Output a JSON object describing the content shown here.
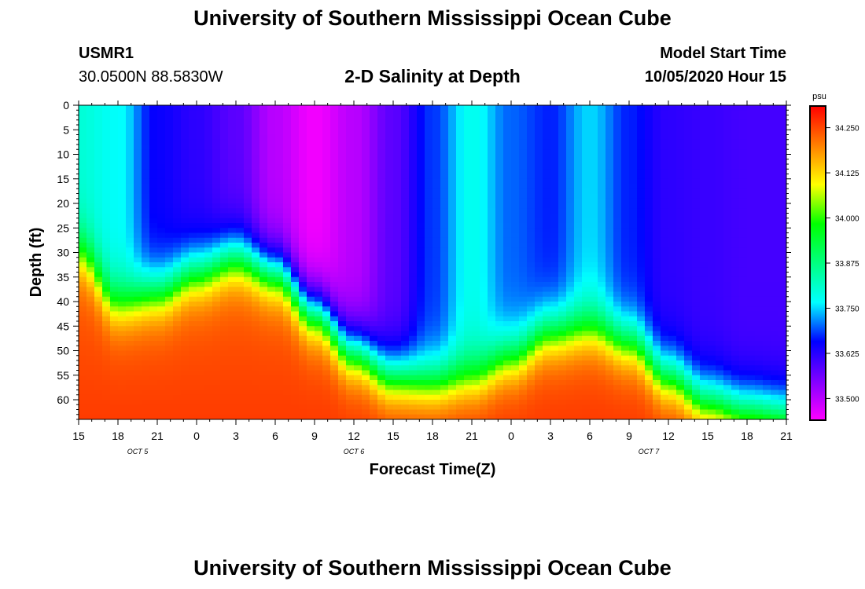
{
  "header": {
    "title": "University of Southern Mississippi Ocean Cube",
    "station_id": "USMR1",
    "coords": "30.0500N 88.5830W",
    "subtitle": "2-D Salinity at Depth",
    "model_start_label": "Model Start Time",
    "model_start_value": "10/05/2020 Hour 15",
    "footer_title": "University of Southern Mississippi Ocean Cube"
  },
  "colors": {
    "stops": [
      "#ff00ff",
      "#8000ff",
      "#0000ff",
      "#00ffff",
      "#00ff80",
      "#00ff00",
      "#ffff00",
      "#ff8000",
      "#ff0000"
    ]
  },
  "chart_data": {
    "type": "heatmap",
    "title": "2-D Salinity at Depth",
    "xlabel": "Forecast Time(Z)",
    "ylabel": "Depth (ft)",
    "x_ticks": [
      "15",
      "18",
      "21",
      "0",
      "3",
      "6",
      "9",
      "12",
      "15",
      "18",
      "21",
      "0",
      "3",
      "6",
      "9",
      "12",
      "15",
      "18",
      "21"
    ],
    "x_range_hours": [
      0,
      54
    ],
    "date_labels": [
      {
        "text": "OCT 5",
        "hour": 4.5
      },
      {
        "text": "OCT 6",
        "hour": 21
      },
      {
        "text": "OCT 7",
        "hour": 43.5
      }
    ],
    "y_ticks": [
      0,
      5,
      10,
      15,
      20,
      25,
      30,
      35,
      40,
      45,
      50,
      55,
      60
    ],
    "ylim": [
      0,
      64
    ],
    "colorbar": {
      "unit": "psu",
      "ticks": [
        "34.250",
        "34.125",
        "34.000",
        "33.875",
        "33.750",
        "33.625",
        "33.500"
      ],
      "tick_values": [
        34.25,
        34.125,
        34.0,
        33.875,
        33.75,
        33.625,
        33.5
      ],
      "range": [
        33.44,
        34.31
      ]
    },
    "surface_salinity": [
      {
        "hour": 0,
        "value": 33.8
      },
      {
        "hour": 3,
        "value": 33.77
      },
      {
        "hour": 6,
        "value": 33.65
      },
      {
        "hour": 9,
        "value": 33.62
      },
      {
        "hour": 12,
        "value": 33.58
      },
      {
        "hour": 15,
        "value": 33.5
      },
      {
        "hour": 18,
        "value": 33.45
      },
      {
        "hour": 21,
        "value": 33.5
      },
      {
        "hour": 24,
        "value": 33.58
      },
      {
        "hour": 27,
        "value": 33.68
      },
      {
        "hour": 30,
        "value": 33.78
      },
      {
        "hour": 33,
        "value": 33.7
      },
      {
        "hour": 36,
        "value": 33.67
      },
      {
        "hour": 39,
        "value": 33.75
      },
      {
        "hour": 42,
        "value": 33.67
      },
      {
        "hour": 45,
        "value": 33.62
      },
      {
        "hour": 48,
        "value": 33.61
      },
      {
        "hour": 51,
        "value": 33.6
      },
      {
        "hour": 54,
        "value": 33.6
      }
    ],
    "halocline_depth_ft": [
      {
        "hour": 0,
        "value": 30
      },
      {
        "hour": 3,
        "value": 40
      },
      {
        "hour": 6,
        "value": 38
      },
      {
        "hour": 9,
        "value": 34
      },
      {
        "hour": 12,
        "value": 31
      },
      {
        "hour": 15,
        "value": 34
      },
      {
        "hour": 18,
        "value": 42
      },
      {
        "hour": 21,
        "value": 50
      },
      {
        "hour": 24,
        "value": 55
      },
      {
        "hour": 27,
        "value": 56
      },
      {
        "hour": 30,
        "value": 55
      },
      {
        "hour": 33,
        "value": 51
      },
      {
        "hour": 36,
        "value": 46
      },
      {
        "hour": 39,
        "value": 45
      },
      {
        "hour": 42,
        "value": 48
      },
      {
        "hour": 45,
        "value": 55
      },
      {
        "hour": 48,
        "value": 60
      },
      {
        "hour": 51,
        "value": 62
      },
      {
        "hour": 54,
        "value": 63
      }
    ]
  }
}
